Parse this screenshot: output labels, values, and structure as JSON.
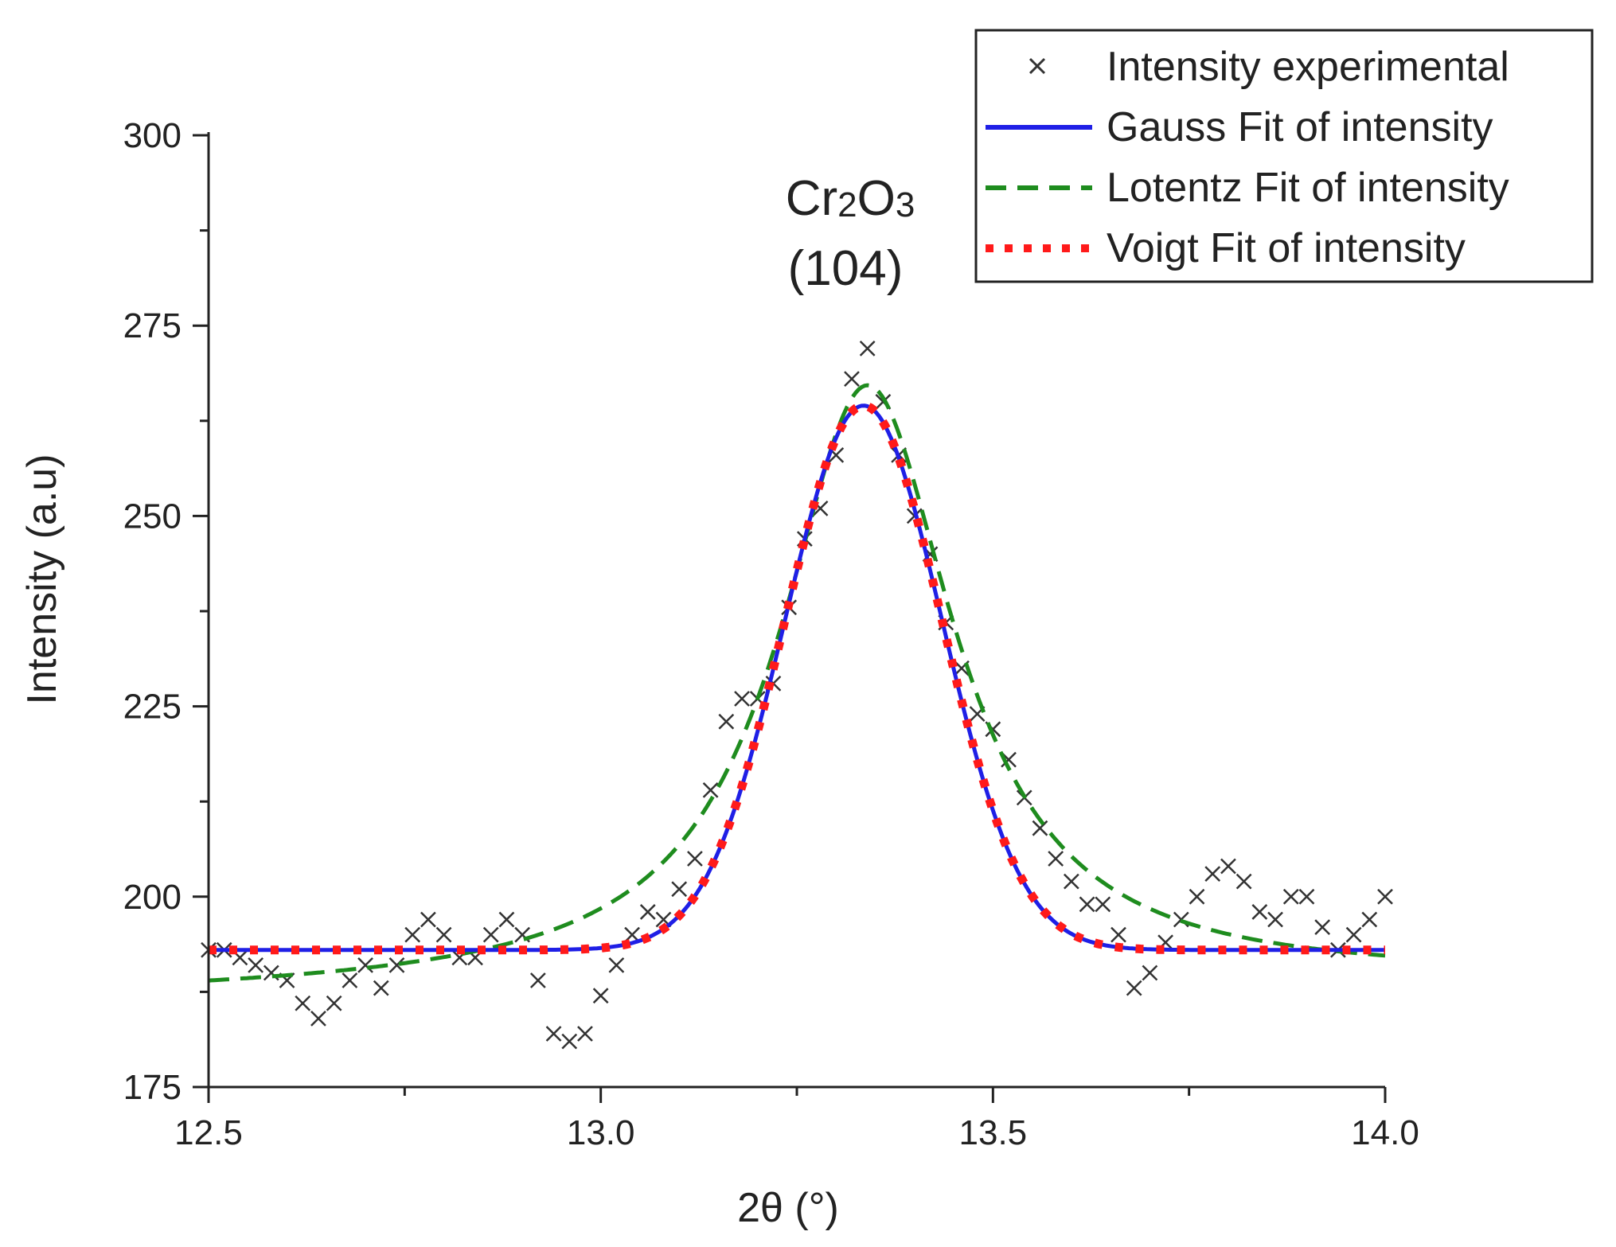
{
  "chart_data": {
    "type": "line",
    "title": "",
    "xlabel": "2θ (°)",
    "ylabel": "Intensity (a.u)",
    "xlim": [
      12.5,
      14.0
    ],
    "ylim": [
      175,
      300
    ],
    "xticks": [
      12.5,
      13.0,
      13.5,
      14.0
    ],
    "xtick_labels": [
      "12.5",
      "13.0",
      "13.5",
      "14.0"
    ],
    "yticks": [
      175,
      200,
      225,
      250,
      275,
      300
    ],
    "ytick_labels": [
      "175",
      "200",
      "225",
      "250",
      "275",
      "300"
    ],
    "grid": false,
    "legend_position": "top-right",
    "annotation": {
      "compound": "Cr",
      "sub1": "2",
      "o": "O",
      "sub2": "3",
      "hkl": "(104)"
    },
    "series": [
      {
        "name": "Intensity experimental",
        "kind": "scatter",
        "marker": "x",
        "color": "#333333",
        "x": [
          12.5,
          12.52,
          12.54,
          12.56,
          12.58,
          12.6,
          12.62,
          12.64,
          12.66,
          12.68,
          12.7,
          12.72,
          12.74,
          12.76,
          12.78,
          12.8,
          12.82,
          12.84,
          12.86,
          12.88,
          12.9,
          12.92,
          12.94,
          12.96,
          12.98,
          13.0,
          13.02,
          13.04,
          13.06,
          13.08,
          13.1,
          13.12,
          13.14,
          13.16,
          13.18,
          13.2,
          13.22,
          13.24,
          13.26,
          13.28,
          13.3,
          13.32,
          13.34,
          13.36,
          13.38,
          13.4,
          13.42,
          13.44,
          13.46,
          13.48,
          13.5,
          13.52,
          13.54,
          13.56,
          13.58,
          13.6,
          13.62,
          13.64,
          13.66,
          13.68,
          13.7,
          13.72,
          13.74,
          13.76,
          13.78,
          13.8,
          13.82,
          13.84,
          13.86,
          13.88,
          13.9,
          13.92,
          13.94,
          13.96,
          13.98,
          14.0
        ],
        "y": [
          193,
          193,
          192,
          191,
          190,
          189,
          186,
          184,
          186,
          189,
          191,
          188,
          191,
          195,
          197,
          195,
          192,
          192,
          195,
          197,
          195,
          189,
          182,
          181,
          182,
          187,
          191,
          195,
          198,
          197,
          201,
          205,
          214,
          223,
          226,
          226,
          228,
          238,
          247,
          251,
          258,
          268,
          272,
          265,
          258,
          250,
          245,
          236,
          230,
          224,
          222,
          218,
          213,
          209,
          205,
          202,
          199,
          199,
          195,
          188,
          190,
          194,
          197,
          200,
          203,
          204,
          202,
          198,
          197,
          200,
          200,
          196,
          193,
          195,
          197,
          200
        ]
      },
      {
        "name": "Gauss Fit of intensity",
        "kind": "line",
        "style": "solid",
        "color": "#1f1fe6",
        "model": "gauss",
        "y0": 193,
        "amplitude": 71.5,
        "center": 13.335,
        "sigma": 0.1
      },
      {
        "name": "Lotentz Fit of intensity",
        "kind": "line",
        "style": "dashed",
        "color": "#1e8c1e",
        "model": "lorentz",
        "y0": 187,
        "amplitude": 79,
        "center": 13.34,
        "gamma": 0.135,
        "slope": 1.4
      },
      {
        "name": "Voigt Fit of intensity",
        "kind": "line",
        "style": "dotted",
        "color": "#ff1a1a",
        "model": "gauss",
        "y0": 193,
        "amplitude": 71.5,
        "center": 13.335,
        "sigma": 0.1
      }
    ]
  }
}
